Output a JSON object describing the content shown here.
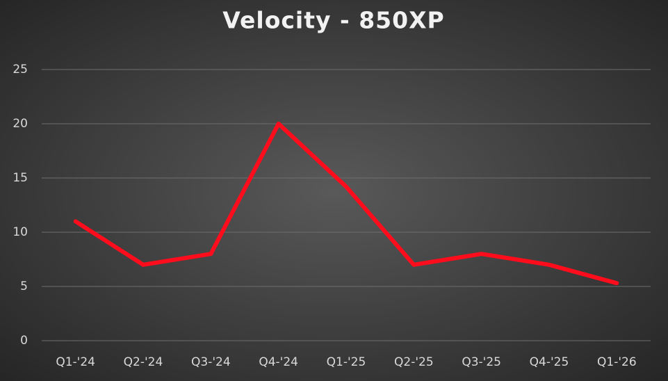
{
  "chart_data": {
    "type": "line",
    "title": "Velocity - 850XP",
    "categories": [
      "Q1-'24",
      "Q2-'24",
      "Q3-'24",
      "Q4-'24",
      "Q1-'25",
      "Q2-'25",
      "Q3-'25",
      "Q4-'25",
      "Q1-'26"
    ],
    "values": [
      11,
      7,
      8,
      20,
      14.2,
      7,
      8,
      7,
      5.3
    ],
    "color": "#ff0d1c",
    "ylim": [
      0,
      25
    ],
    "yticks": [
      0,
      5,
      10,
      15,
      20,
      25
    ],
    "grid": true
  }
}
